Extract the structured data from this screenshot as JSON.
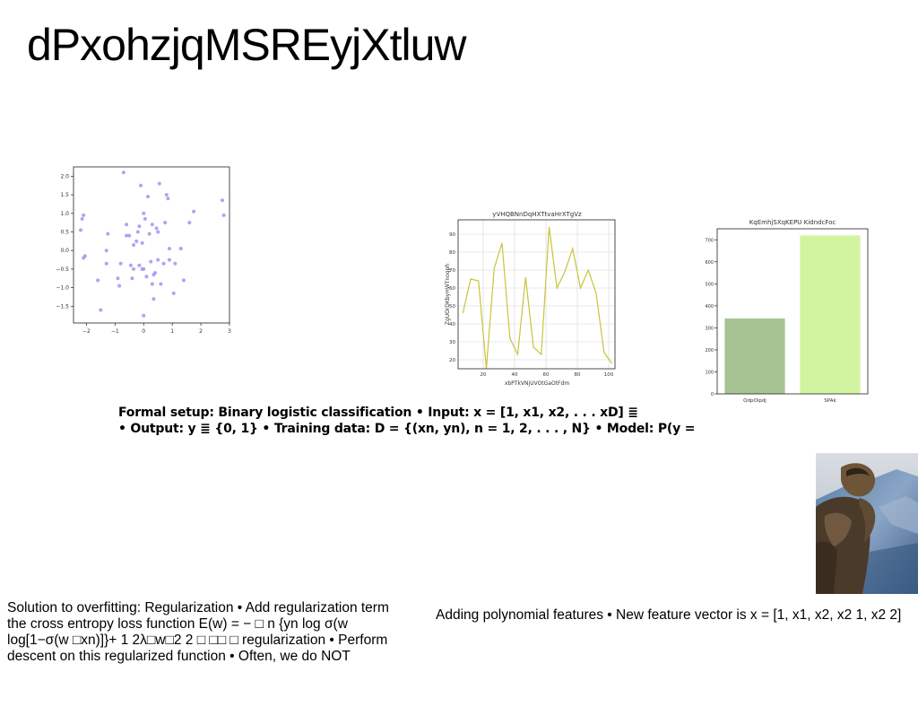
{
  "slide": {
    "title": "dPxohzjqMSREyjXtluw",
    "setup_lines": [
      "Formal setup: Binary logistic classification • Input: x = [1, x1, x2, . . . xD] ≣",
      "• Output: y ≣ {0, 1} • Training data: D = {(xn, yn), n = 1, 2, . . . , N} • Model: P(y ="
    ],
    "regularization_lines": [
      "Solution to overfitting: Regularization • Add regularization term",
      "the cross entropy loss function E(w) = − □ n {yn log σ(w",
      "log[1−σ(w □xn)]}+ 1 2λ□w□2 2 □ □□ □ regularization • Perform",
      "descent on this regularized function • Often, we do NOT"
    ],
    "polynomial_text": "Adding polynomial features • New feature vector is x = [1, x1, x2, x2 1, x2 2]"
  },
  "chart_data": [
    {
      "type": "scatter",
      "title": "",
      "xlabel": "",
      "ylabel": "",
      "xlim": [
        -2.45,
        3.0
      ],
      "ylim": [
        -1.95,
        2.25
      ],
      "xticks": [
        -2,
        -1,
        0,
        1,
        2,
        3
      ],
      "yticks": [
        -1.5,
        -1.0,
        -0.5,
        0.0,
        0.5,
        1.0,
        1.5,
        2.0
      ],
      "ytick_labels": [
        "−1.5",
        "−1.0",
        "−0.5",
        "0.0",
        "0.5",
        "1.0",
        "1.5",
        "2.0"
      ],
      "xtick_labels": [
        "−2",
        "−1",
        "0",
        "1",
        "2",
        "3"
      ],
      "grid": false,
      "color": "#9b97ee",
      "points": [
        [
          -2.2,
          0.55
        ],
        [
          -2.1,
          0.95
        ],
        [
          -2.15,
          0.85
        ],
        [
          -2.1,
          -0.2
        ],
        [
          -2.05,
          -0.15
        ],
        [
          -1.6,
          -0.8
        ],
        [
          -1.5,
          -1.6
        ],
        [
          -1.3,
          -0.35
        ],
        [
          -1.3,
          0.0
        ],
        [
          -1.25,
          0.45
        ],
        [
          -0.9,
          -0.75
        ],
        [
          -0.85,
          -0.95
        ],
        [
          -0.8,
          -0.35
        ],
        [
          -0.7,
          2.1
        ],
        [
          -0.6,
          0.7
        ],
        [
          -0.6,
          0.4
        ],
        [
          -0.5,
          0.4
        ],
        [
          -0.45,
          -0.4
        ],
        [
          -0.4,
          -0.75
        ],
        [
          -0.35,
          -0.5
        ],
        [
          -0.35,
          0.15
        ],
        [
          -0.25,
          0.25
        ],
        [
          -0.2,
          0.5
        ],
        [
          -0.15,
          -0.4
        ],
        [
          -0.15,
          0.65
        ],
        [
          -0.1,
          1.75
        ],
        [
          -0.05,
          0.2
        ],
        [
          -0.05,
          -0.5
        ],
        [
          0.0,
          -0.5
        ],
        [
          0.0,
          1.0
        ],
        [
          0.0,
          -1.75
        ],
        [
          0.05,
          0.85
        ],
        [
          0.1,
          -0.7
        ],
        [
          0.15,
          1.45
        ],
        [
          0.2,
          0.45
        ],
        [
          0.25,
          -0.3
        ],
        [
          0.3,
          0.7
        ],
        [
          0.3,
          -0.9
        ],
        [
          0.35,
          -1.3
        ],
        [
          0.35,
          -0.65
        ],
        [
          0.4,
          -0.6
        ],
        [
          0.45,
          0.6
        ],
        [
          0.5,
          0.5
        ],
        [
          0.5,
          -0.25
        ],
        [
          0.55,
          1.8
        ],
        [
          0.6,
          -0.9
        ],
        [
          0.7,
          -0.35
        ],
        [
          0.75,
          0.75
        ],
        [
          0.8,
          1.5
        ],
        [
          0.85,
          1.4
        ],
        [
          0.9,
          -0.25
        ],
        [
          0.9,
          0.05
        ],
        [
          1.05,
          -1.15
        ],
        [
          1.1,
          -0.35
        ],
        [
          1.3,
          0.05
        ],
        [
          1.4,
          -0.8
        ],
        [
          1.6,
          0.75
        ],
        [
          1.75,
          1.05
        ],
        [
          2.75,
          1.35
        ],
        [
          2.8,
          0.95
        ]
      ]
    },
    {
      "type": "line",
      "title": "yVHQBNnDqHXTtvaHrXTgVz",
      "xlabel": "xbPTkVNjUVOtGaOtFdm",
      "ylabel": "ZgUOrDKbyHWTnoqph",
      "xlim": [
        4,
        104
      ],
      "ylim": [
        15,
        98
      ],
      "xticks": [
        20,
        40,
        60,
        80,
        100
      ],
      "yticks": [
        20,
        30,
        40,
        50,
        60,
        70,
        80,
        90
      ],
      "grid": true,
      "color": "#c9c43a",
      "x": [
        7,
        12,
        17,
        22,
        27,
        32,
        37,
        42,
        47,
        52,
        57,
        62,
        67,
        72,
        77,
        82,
        87,
        92,
        97,
        102
      ],
      "y": [
        46,
        65,
        64,
        15,
        71,
        85,
        32,
        23,
        66,
        27,
        23,
        94,
        60,
        69,
        82,
        60,
        70,
        57,
        24,
        18
      ]
    },
    {
      "type": "bar",
      "title": "KqEmhjSXqKEPU KidndcFoc",
      "xlabel": "",
      "ylabel": "",
      "ylim": [
        0,
        750
      ],
      "yticks": [
        0,
        100,
        200,
        300,
        400,
        500,
        600,
        700
      ],
      "grid": false,
      "categories": [
        "QdpOlpdj",
        "SPAk"
      ],
      "values": [
        343,
        720
      ],
      "colors": [
        "#a6c493",
        "#d2f4a0"
      ]
    }
  ]
}
